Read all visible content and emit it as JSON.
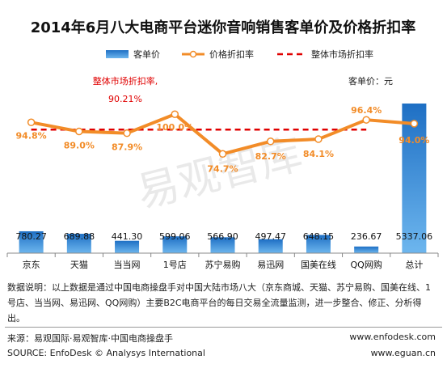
{
  "page": {
    "title": "2014年6月八大电商平台迷你音响销售客单价及价格折扣率",
    "unit_label": "客单价：元",
    "watermark": "易观智库",
    "note": "数据说明：以上数据是通过中国电商操盘手对中国大陆市场八大（京东商城、天猫、苏宁易购、国美在线、1号店、当当网、易迅网、QQ网购）主要B2C电商平台的每日交易全流量监测，进一步整合、修正、分析得出。",
    "source_left": "来源：易观国际·易观智库·中国电商操盘手",
    "source_left_en": "SOURCE: EnfoDesk © Analysys International",
    "source_right": "www.enfodesk.com",
    "source_right_en": "www.eguan.cn"
  },
  "chart_data": {
    "type": "bar",
    "title": "2014年6月八大电商平台迷你音响销售客单价及价格折扣率",
    "categories": [
      "京东",
      "天猫",
      "当当网",
      "1号店",
      "苏宁易购",
      "易迅网",
      "国美在线",
      "QQ网购",
      "总计"
    ],
    "series": [
      {
        "name": "客单价",
        "type": "bar",
        "values": [
          780.27,
          689.88,
          441.3,
          599.06,
          566.9,
          497.47,
          648.15,
          236.67,
          5337.06
        ],
        "labels": [
          "780.27",
          "689.88",
          "441.30",
          "599.06",
          "566.90",
          "497.47",
          "648.15",
          "236.67",
          "5337.06"
        ],
        "color": "#2f7fd0"
      },
      {
        "name": "价格折扣率",
        "type": "line",
        "values": [
          94.8,
          89.0,
          87.9,
          100.0,
          74.7,
          82.7,
          84.1,
          96.4,
          94.0
        ],
        "labels": [
          "94.8%",
          "89.0%",
          "87.9%",
          "100.0%",
          "74.7%",
          "82.7%",
          "84.1%",
          "96.4%",
          "94.0%"
        ],
        "color": "#f28c28"
      },
      {
        "name": "整体市场折扣率",
        "type": "reference-line",
        "value": 90.21,
        "label": "90.21%",
        "annotation": "整体市场折扣率,",
        "color": "#e00000"
      }
    ],
    "legend": "top",
    "grid": false
  }
}
